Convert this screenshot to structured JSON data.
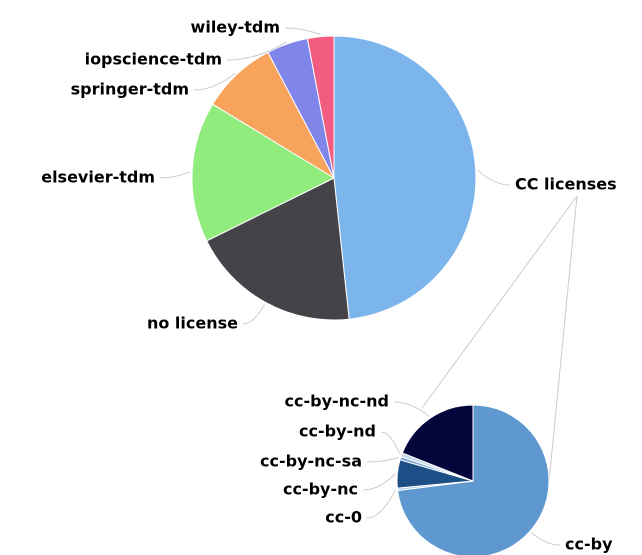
{
  "chart_data": [
    {
      "type": "pie",
      "categories": [
        "CC licenses",
        "no license",
        "elsevier-tdm",
        "springer-tdm",
        "iopscience-tdm",
        "wiley-tdm"
      ],
      "values": [
        48.3,
        19.4,
        16,
        8.6,
        4.7,
        3
      ],
      "colors": [
        "#7cb5ec",
        "#434348",
        "#90ed7d",
        "#f7a35c",
        "#8085e9",
        "#f15c80"
      ]
    },
    {
      "type": "pie",
      "categories": [
        "cc-by",
        "cc-0",
        "cc-by-nc",
        "cc-by-nc-sa",
        "cc-by-nd",
        "cc-by-nc-nd"
      ],
      "values": [
        73,
        0.5,
        6,
        0.7,
        0.8,
        19
      ],
      "colors": [
        "#5f98cf",
        "#a9c9e9",
        "#1c4f86",
        "#7fa8d2",
        "#c3d7ec",
        "#02063a"
      ]
    }
  ]
}
